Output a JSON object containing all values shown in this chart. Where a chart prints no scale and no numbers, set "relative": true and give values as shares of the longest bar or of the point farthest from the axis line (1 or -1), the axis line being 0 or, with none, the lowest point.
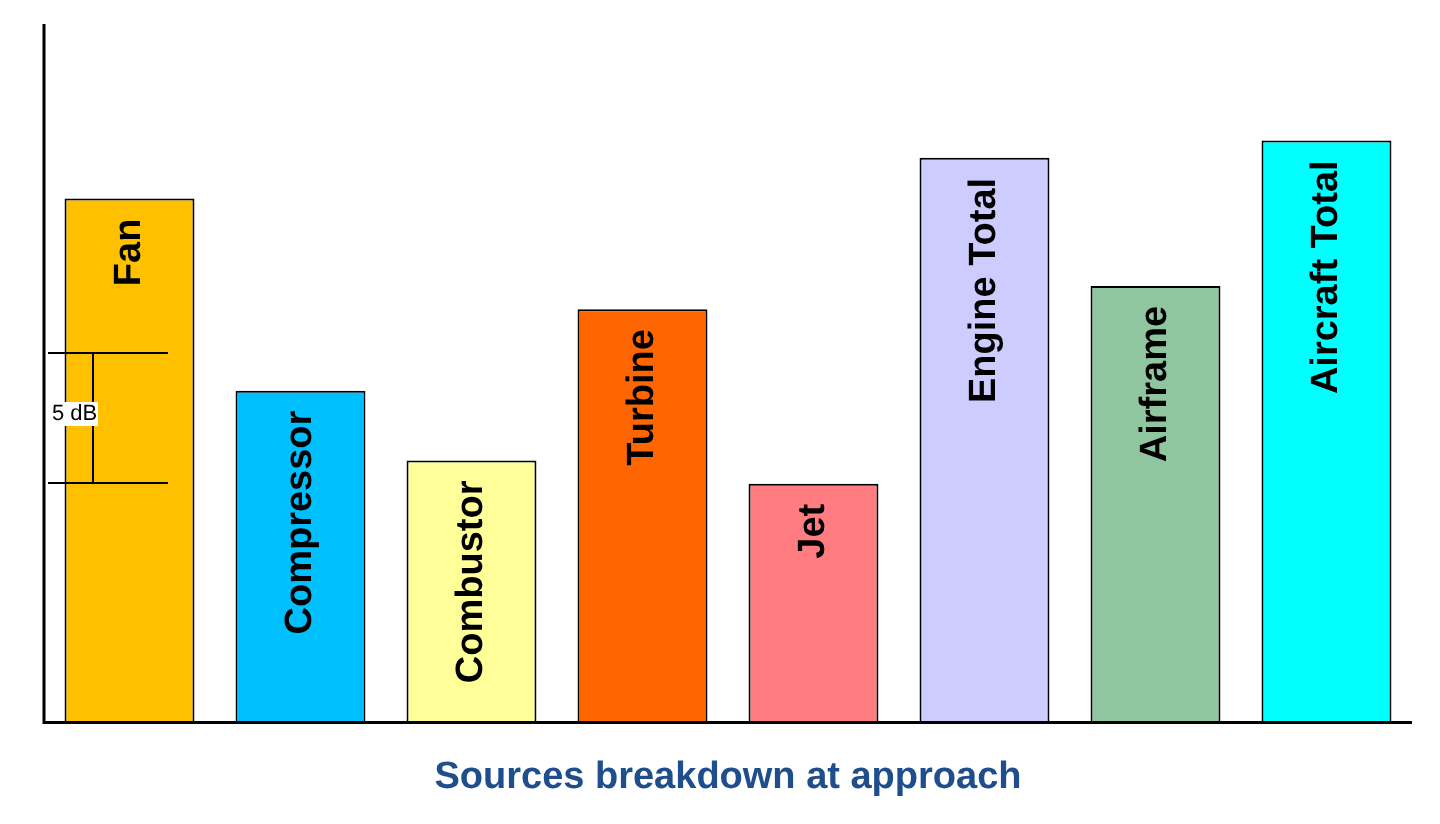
{
  "chart_data": {
    "type": "bar",
    "relative": true,
    "title": "Sources breakdown at approach",
    "categories": [
      "Fan",
      "Compressor",
      "Combustor",
      "Turbine",
      "Jet",
      "Engine Total",
      "Airframe",
      "Aircraft Total"
    ],
    "values": [
      0.9,
      0.57,
      0.45,
      0.71,
      0.41,
      0.97,
      0.75,
      1
    ],
    "colors": [
      "#ffc000",
      "#00bfff",
      "#ffff99",
      "#ff6600",
      "#ff7c80",
      "#ccccff",
      "#8fc59f",
      "#00ffff"
    ],
    "annotations": [
      "5 dB"
    ],
    "grid": false,
    "legend": false
  }
}
